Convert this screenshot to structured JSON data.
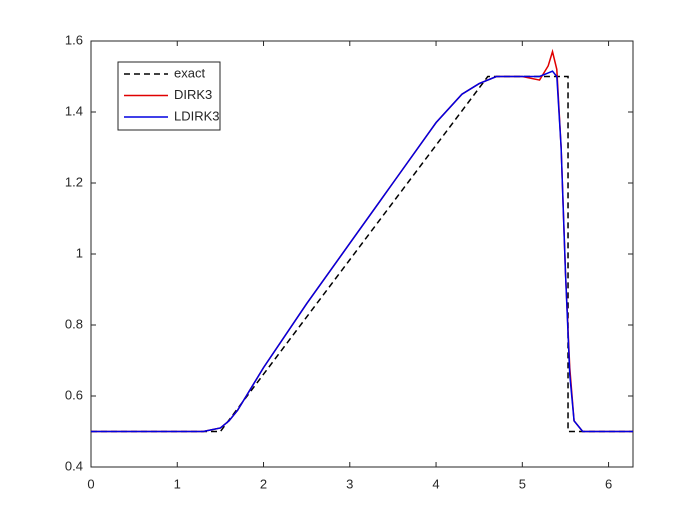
{
  "chart_data": {
    "type": "line",
    "xlim": [
      0,
      6.2832
    ],
    "xticks": [
      0,
      1,
      2,
      3,
      4,
      5,
      6
    ],
    "ylim": [
      0.4,
      1.6
    ],
    "yticks": [
      0.4,
      0.6,
      0.8,
      1,
      1.2,
      1.4,
      1.6
    ],
    "legend": "northwest",
    "series": [
      {
        "name": "exact",
        "color": "#000000",
        "dash": true,
        "x": [
          0,
          1.5,
          4.6,
          5.53,
          5.53,
          6.2832
        ],
        "values": [
          0.5,
          0.5,
          1.5,
          1.5,
          0.5,
          0.5
        ]
      },
      {
        "name": "DIRK3",
        "color": "#e00000",
        "dash": false,
        "x": [
          0,
          1.3,
          1.5,
          1.6,
          1.7,
          1.8,
          2,
          2.5,
          3,
          3.5,
          4,
          4.3,
          4.5,
          4.7,
          5,
          5.2,
          5.3,
          5.35,
          5.4,
          5.45,
          5.5,
          5.55,
          5.6,
          5.7,
          5.8,
          6.2832
        ],
        "values": [
          0.5,
          0.5,
          0.51,
          0.53,
          0.56,
          0.6,
          0.68,
          0.86,
          1.03,
          1.2,
          1.37,
          1.45,
          1.48,
          1.5,
          1.5,
          1.49,
          1.53,
          1.57,
          1.52,
          1.3,
          0.95,
          0.68,
          0.53,
          0.5,
          0.5,
          0.5
        ]
      },
      {
        "name": "LDIRK3",
        "color": "#0000e0",
        "dash": false,
        "x": [
          0,
          1.3,
          1.5,
          1.6,
          1.7,
          1.8,
          2,
          2.5,
          3,
          3.5,
          4,
          4.3,
          4.5,
          4.7,
          5,
          5.2,
          5.3,
          5.35,
          5.4,
          5.45,
          5.5,
          5.55,
          5.6,
          5.7,
          5.8,
          6.2832
        ],
        "values": [
          0.5,
          0.5,
          0.51,
          0.53,
          0.56,
          0.6,
          0.68,
          0.86,
          1.03,
          1.2,
          1.37,
          1.45,
          1.48,
          1.5,
          1.5,
          1.5,
          1.51,
          1.515,
          1.5,
          1.3,
          0.95,
          0.66,
          0.53,
          0.5,
          0.5,
          0.5
        ]
      }
    ]
  }
}
